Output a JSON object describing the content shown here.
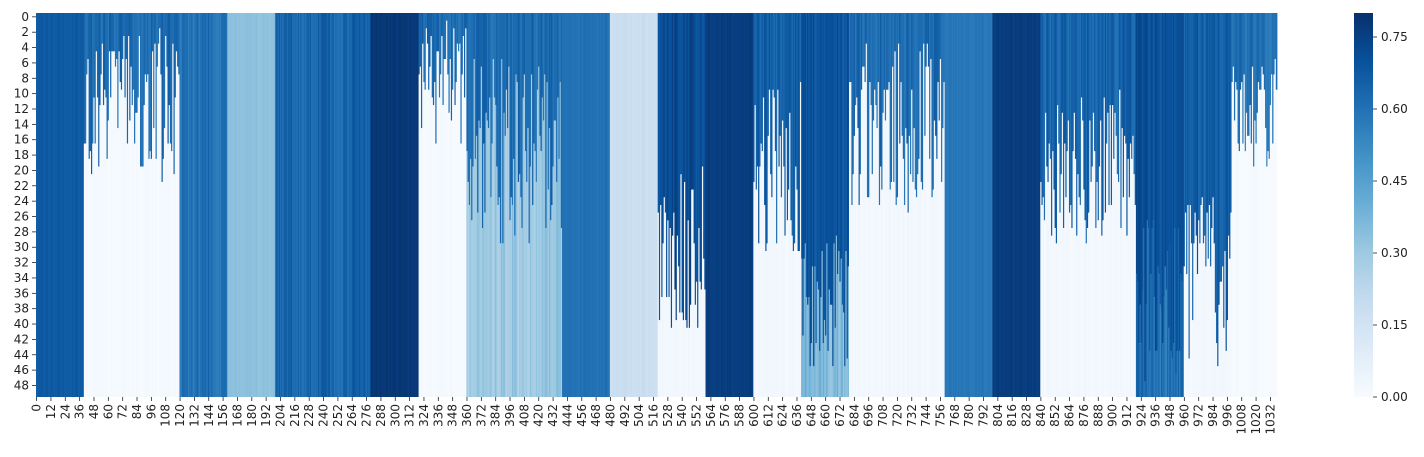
{
  "chart_data": {
    "type": "heatmap",
    "title": "",
    "xlabel": "",
    "ylabel": "",
    "colormap": "Blues",
    "n_rows": 50,
    "n_cols": 1038,
    "x_tick_labels": [
      "0",
      "12",
      "24",
      "36",
      "48",
      "60",
      "72",
      "84",
      "96",
      "108",
      "120",
      "132",
      "144",
      "156",
      "168",
      "180",
      "192",
      "204",
      "216",
      "228",
      "240",
      "252",
      "264",
      "276",
      "288",
      "300",
      "312",
      "324",
      "336",
      "348",
      "360",
      "372",
      "384",
      "396",
      "408",
      "420",
      "432",
      "444",
      "456",
      "468",
      "480",
      "492",
      "504",
      "516",
      "528",
      "540",
      "552",
      "564",
      "576",
      "588",
      "600",
      "612",
      "624",
      "636",
      "648",
      "660",
      "672",
      "684",
      "696",
      "708",
      "720",
      "732",
      "744",
      "756",
      "768",
      "780",
      "792",
      "804",
      "816",
      "828",
      "840",
      "852",
      "864",
      "876",
      "888",
      "900",
      "912",
      "924",
      "936",
      "948",
      "960",
      "972",
      "984",
      "996",
      "1008",
      "1020",
      "1032"
    ],
    "y_tick_labels": [
      "0",
      "2",
      "4",
      "6",
      "8",
      "10",
      "12",
      "14",
      "16",
      "18",
      "20",
      "22",
      "24",
      "26",
      "28",
      "30",
      "32",
      "34",
      "36",
      "38",
      "40",
      "42",
      "44",
      "46",
      "48"
    ],
    "colorbar": {
      "range": [
        0.0,
        0.8
      ],
      "tick_labels": [
        "0.00",
        "0.15",
        "0.30",
        "0.45",
        "0.60",
        "0.75"
      ],
      "ticks": [
        0.0,
        0.15,
        0.3,
        0.45,
        0.6,
        0.75
      ]
    },
    "column_bands": [
      {
        "cols": [
          0,
          40
        ],
        "value": 0.67,
        "pattern": "solid"
      },
      {
        "cols": [
          40,
          120
        ],
        "value": 0.62,
        "pattern": "falloff",
        "low": 0.01,
        "rows": [
          2,
          22
        ]
      },
      {
        "cols": [
          120,
          160
        ],
        "value": 0.6,
        "pattern": "striped"
      },
      {
        "cols": [
          160,
          200
        ],
        "value": 0.33,
        "pattern": "solid"
      },
      {
        "cols": [
          200,
          280
        ],
        "value": 0.64,
        "pattern": "striped"
      },
      {
        "cols": [
          280,
          320
        ],
        "value": 0.78,
        "pattern": "solid"
      },
      {
        "cols": [
          320,
          360
        ],
        "value": 0.62,
        "pattern": "falloff",
        "low": 0.01,
        "rows": [
          1,
          18
        ]
      },
      {
        "cols": [
          360,
          440
        ],
        "value": 0.62,
        "pattern": "falloff",
        "low": 0.3,
        "rows": [
          6,
          30
        ]
      },
      {
        "cols": [
          440,
          480
        ],
        "value": 0.6,
        "pattern": "solid"
      },
      {
        "cols": [
          480,
          520
        ],
        "value": 0.18,
        "pattern": "solid"
      },
      {
        "cols": [
          520,
          560
        ],
        "value": 0.72,
        "pattern": "falloff",
        "low": 0.02,
        "rows": [
          20,
          42
        ]
      },
      {
        "cols": [
          560,
          600
        ],
        "value": 0.76,
        "pattern": "solid"
      },
      {
        "cols": [
          600,
          640
        ],
        "value": 0.66,
        "pattern": "falloff",
        "low": 0.02,
        "rows": [
          8,
          32
        ]
      },
      {
        "cols": [
          640,
          680
        ],
        "value": 0.7,
        "pattern": "falloff",
        "low": 0.36,
        "rows": [
          28,
          46
        ]
      },
      {
        "cols": [
          680,
          760
        ],
        "value": 0.62,
        "pattern": "falloff",
        "low": 0.02,
        "rows": [
          4,
          26
        ]
      },
      {
        "cols": [
          760,
          800
        ],
        "value": 0.58,
        "pattern": "solid"
      },
      {
        "cols": [
          800,
          840
        ],
        "value": 0.76,
        "pattern": "solid"
      },
      {
        "cols": [
          840,
          920
        ],
        "value": 0.64,
        "pattern": "falloff",
        "low": 0.02,
        "rows": [
          10,
          30
        ]
      },
      {
        "cols": [
          920,
          960
        ],
        "value": 0.7,
        "pattern": "falloff",
        "low": 0.6,
        "rows": [
          26,
          48
        ]
      },
      {
        "cols": [
          960,
          1000
        ],
        "value": 0.66,
        "pattern": "falloff",
        "low": 0.02,
        "rows": [
          24,
          46
        ]
      },
      {
        "cols": [
          1000,
          1038
        ],
        "value": 0.6,
        "pattern": "falloff",
        "low": 0.01,
        "rows": [
          6,
          20
        ]
      }
    ]
  }
}
